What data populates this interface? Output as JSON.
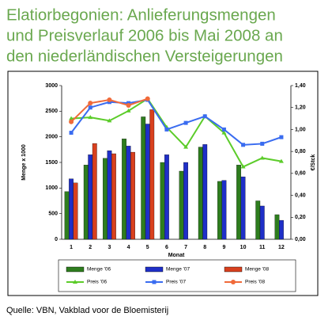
{
  "chart_data": {
    "type": "combo",
    "title": [
      "Elatiorbegonien: Anlieferungsmengen",
      "und Preisverlauf 2006 bis Mai 2008 an",
      "den niederländischen Versteigerungen"
    ],
    "y_label": "Menge x 1000",
    "y2_label": "€/Stck",
    "x_label": "Monat",
    "source": "Quelle: VBN, Vakblad voor de Bloemisterij",
    "categories": [
      "1",
      "2",
      "3",
      "4",
      "5",
      "6",
      "7",
      "8",
      "9",
      "10",
      "11",
      "12"
    ],
    "ylim": [
      0,
      3000
    ],
    "yticks": [
      0,
      500,
      1000,
      1500,
      2000,
      2500,
      3000
    ],
    "y2lim": [
      0,
      1.4
    ],
    "y2ticks": [
      {
        "value": 0,
        "label": "0,00"
      },
      {
        "value": 0.2,
        "label": "0,20"
      },
      {
        "value": 0.4,
        "label": "0,40"
      },
      {
        "value": 0.6,
        "label": "0,60"
      },
      {
        "value": 0.8,
        "label": "0,80"
      },
      {
        "value": 1.0,
        "label": "1,00"
      },
      {
        "value": 1.2,
        "label": "1,20"
      },
      {
        "value": 1.4,
        "label": "1,40"
      }
    ],
    "series": [
      {
        "name": "Menge '06",
        "type": "bar",
        "color": "#2e7d1e",
        "values": [
          930,
          1450,
          1580,
          1960,
          2390,
          1500,
          1330,
          1800,
          1130,
          1450,
          750,
          480
        ]
      },
      {
        "name": "Menge '07",
        "type": "bar",
        "color": "#1f2fc8",
        "values": [
          1180,
          1650,
          1730,
          1820,
          2250,
          1650,
          1500,
          1850,
          1150,
          1220,
          650,
          370
        ]
      },
      {
        "name": "Menge '08",
        "type": "bar",
        "color": "#d8401e",
        "values": [
          1100,
          1870,
          1670,
          1700,
          2530,
          null,
          null,
          null,
          null,
          null,
          null,
          null
        ]
      },
      {
        "name": "Preis '06",
        "type": "line",
        "axis": "y2",
        "marker": "triangle",
        "color": "#5ccc2a",
        "values": [
          1.1,
          1.11,
          1.08,
          1.17,
          1.28,
          1.02,
          0.84,
          1.12,
          0.97,
          0.66,
          0.74,
          0.71
        ]
      },
      {
        "name": "Preis '07",
        "type": "line",
        "axis": "y2",
        "marker": "square",
        "color": "#3a6cf0",
        "values": [
          0.97,
          1.2,
          1.25,
          1.24,
          1.27,
          1.0,
          1.06,
          1.12,
          1.0,
          0.86,
          0.87,
          0.93
        ]
      },
      {
        "name": "Preis '08",
        "type": "line",
        "axis": "y2",
        "marker": "circle",
        "color": "#f06a3a",
        "values": [
          1.07,
          1.24,
          1.27,
          1.22,
          1.28,
          null,
          null,
          null,
          null,
          null,
          null,
          null
        ]
      }
    ]
  }
}
